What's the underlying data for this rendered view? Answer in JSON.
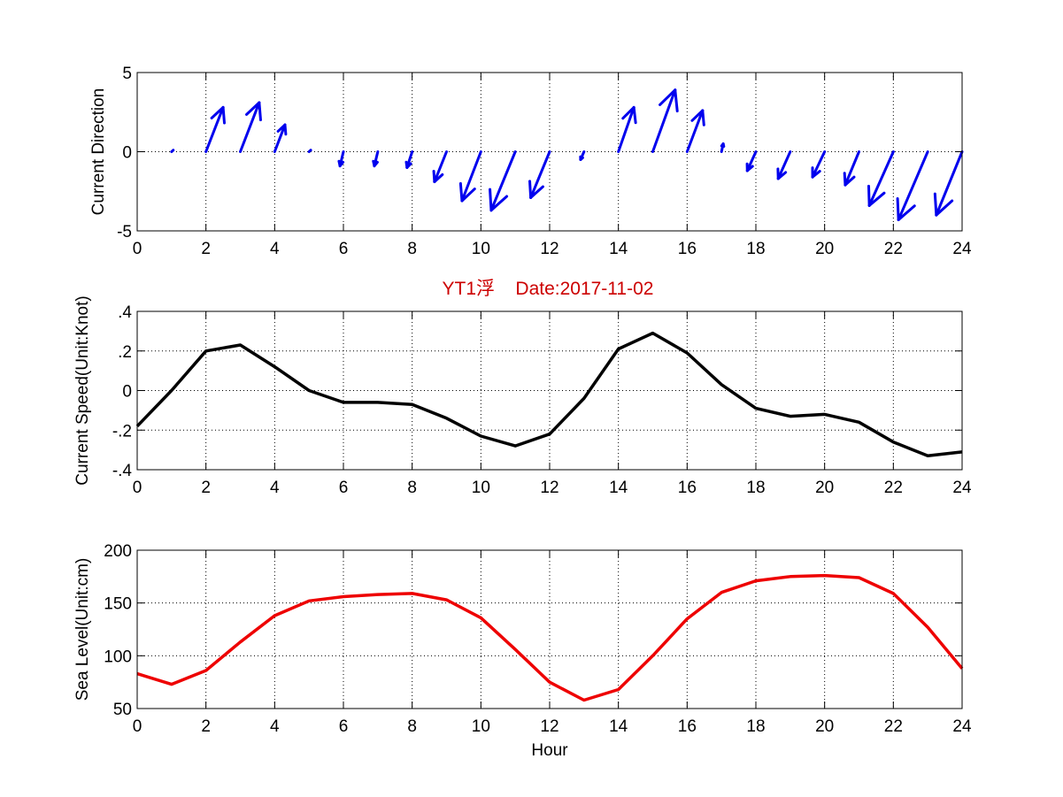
{
  "figure_title": "YT1浮    Date:2017-11-02",
  "colors": {
    "direction": "#0000ee",
    "speed": "#000000",
    "sea_level": "#ee0000",
    "title": "#cc0000",
    "grid": "#000000"
  },
  "chart_data": [
    {
      "type": "quiver",
      "ylabel": "Current Direction",
      "xlabel": "",
      "xlim": [
        0,
        24
      ],
      "ylim": [
        -5,
        5
      ],
      "xticks": [
        0,
        2,
        4,
        6,
        8,
        10,
        12,
        14,
        16,
        18,
        20,
        22,
        24
      ],
      "yticks": [
        -5,
        0,
        5
      ],
      "grid": true,
      "origins": [
        1,
        2,
        3,
        4,
        5,
        6,
        7,
        8,
        9,
        10,
        11,
        12,
        13,
        14,
        15,
        16,
        17,
        18,
        19,
        20,
        21,
        22,
        23,
        24
      ],
      "u": [
        0.05,
        0.5,
        0.55,
        0.3,
        0.05,
        -0.1,
        -0.1,
        -0.15,
        -0.35,
        -0.55,
        -0.7,
        -0.55,
        -0.1,
        0.45,
        0.65,
        0.45,
        0.05,
        -0.25,
        -0.35,
        -0.35,
        -0.4,
        -0.7,
        -0.85,
        -0.75
      ],
      "v": [
        0.1,
        2.8,
        3.1,
        1.7,
        0.1,
        -0.9,
        -0.9,
        -1.0,
        -1.9,
        -3.1,
        -3.7,
        -2.9,
        -0.5,
        2.8,
        3.9,
        2.6,
        0.5,
        -1.2,
        -1.7,
        -1.6,
        -2.1,
        -3.4,
        -4.3,
        -4.0
      ]
    },
    {
      "type": "line",
      "title": "YT1浮    Date:2017-11-02",
      "ylabel": "Current Speed(Unit:Knot)",
      "xlabel": "",
      "xlim": [
        0,
        24
      ],
      "ylim": [
        -0.4,
        0.4
      ],
      "xticks": [
        0,
        2,
        4,
        6,
        8,
        10,
        12,
        14,
        16,
        18,
        20,
        22,
        24
      ],
      "yticks": [
        -0.4,
        -0.2,
        0,
        0.2,
        0.4
      ],
      "grid": true,
      "x": [
        0,
        1,
        2,
        3,
        4,
        5,
        6,
        7,
        8,
        9,
        10,
        11,
        12,
        13,
        14,
        15,
        16,
        17,
        18,
        19,
        20,
        21,
        22,
        23,
        24
      ],
      "values": [
        -0.18,
        0.0,
        0.2,
        0.23,
        0.12,
        0.0,
        -0.06,
        -0.06,
        -0.07,
        -0.14,
        -0.23,
        -0.28,
        -0.22,
        -0.04,
        0.21,
        0.29,
        0.19,
        0.03,
        -0.09,
        -0.13,
        -0.12,
        -0.16,
        -0.26,
        -0.33,
        -0.31
      ]
    },
    {
      "type": "line",
      "ylabel": "Sea Level(Unit:cm)",
      "xlabel": "Hour",
      "xlim": [
        0,
        24
      ],
      "ylim": [
        50,
        200
      ],
      "xticks": [
        0,
        2,
        4,
        6,
        8,
        10,
        12,
        14,
        16,
        18,
        20,
        22,
        24
      ],
      "yticks": [
        50,
        100,
        150,
        200
      ],
      "grid": true,
      "x": [
        0,
        1,
        2,
        3,
        4,
        5,
        6,
        7,
        8,
        9,
        10,
        11,
        12,
        13,
        14,
        15,
        16,
        17,
        18,
        19,
        20,
        21,
        22,
        23,
        24
      ],
      "values": [
        83,
        73,
        86,
        113,
        138,
        152,
        156,
        158,
        159,
        153,
        136,
        106,
        75,
        58,
        68,
        100,
        135,
        160,
        171,
        175,
        176,
        174,
        159,
        127,
        88
      ]
    }
  ]
}
